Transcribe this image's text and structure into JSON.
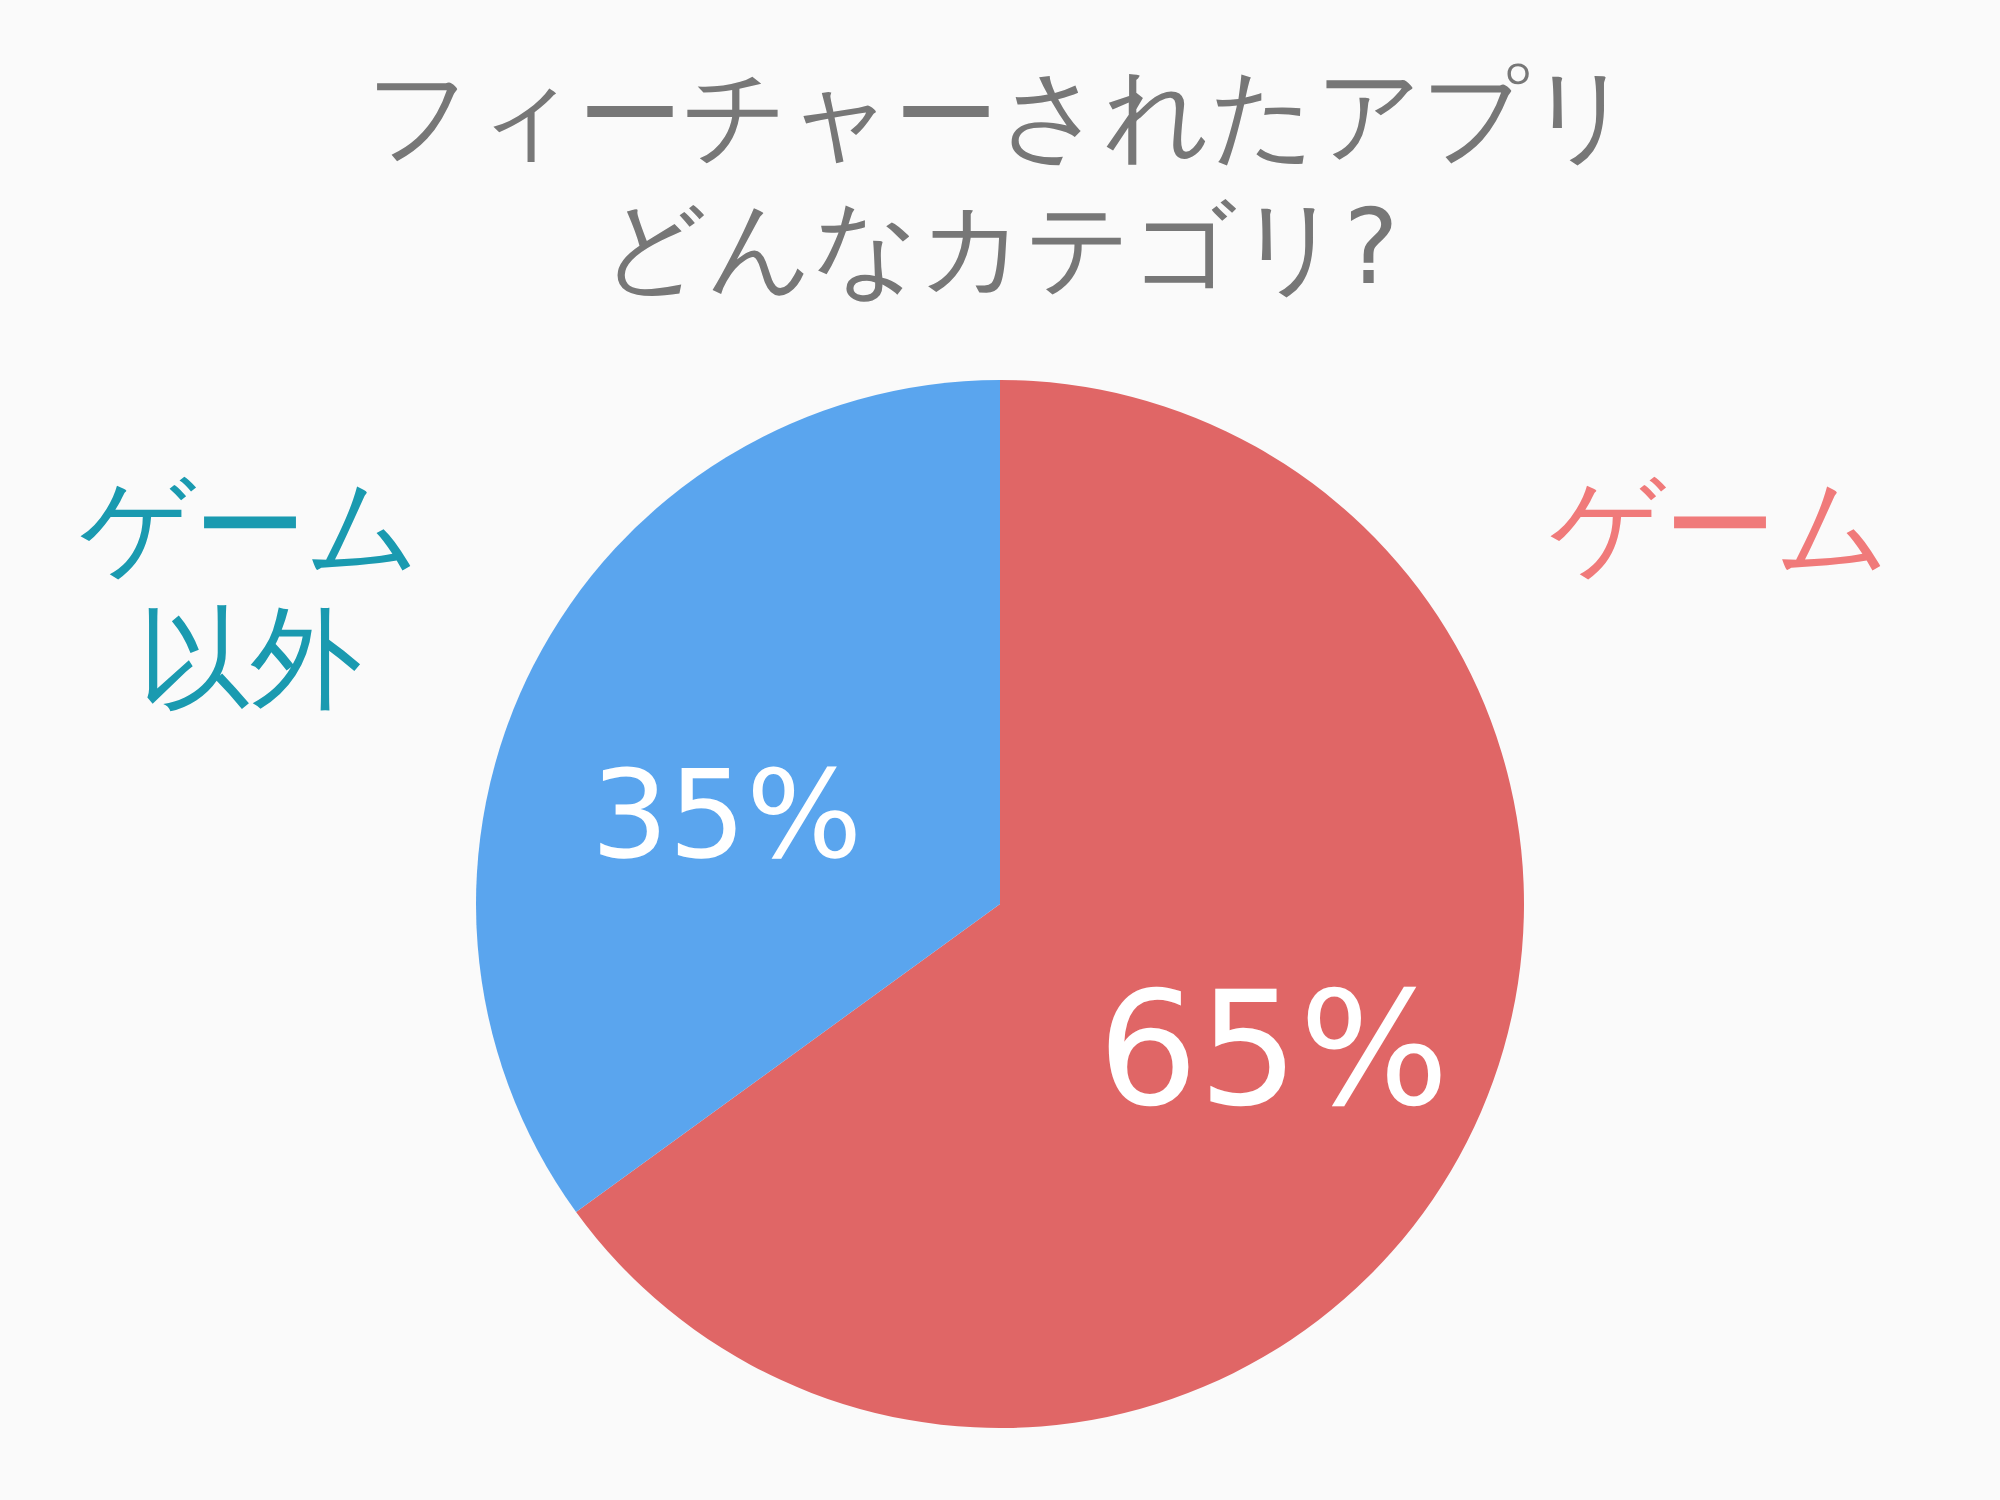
{
  "chart_data": {
    "type": "pie",
    "title": "フィーチャーされたアプリどんなカテゴリ?",
    "categories": [
      "ゲーム",
      "ゲーム以外"
    ],
    "values": [
      65,
      35
    ],
    "colors": [
      "#e06666",
      "#5aa5ee"
    ],
    "value_labels": [
      "65%",
      "35%"
    ],
    "legend": false
  }
}
